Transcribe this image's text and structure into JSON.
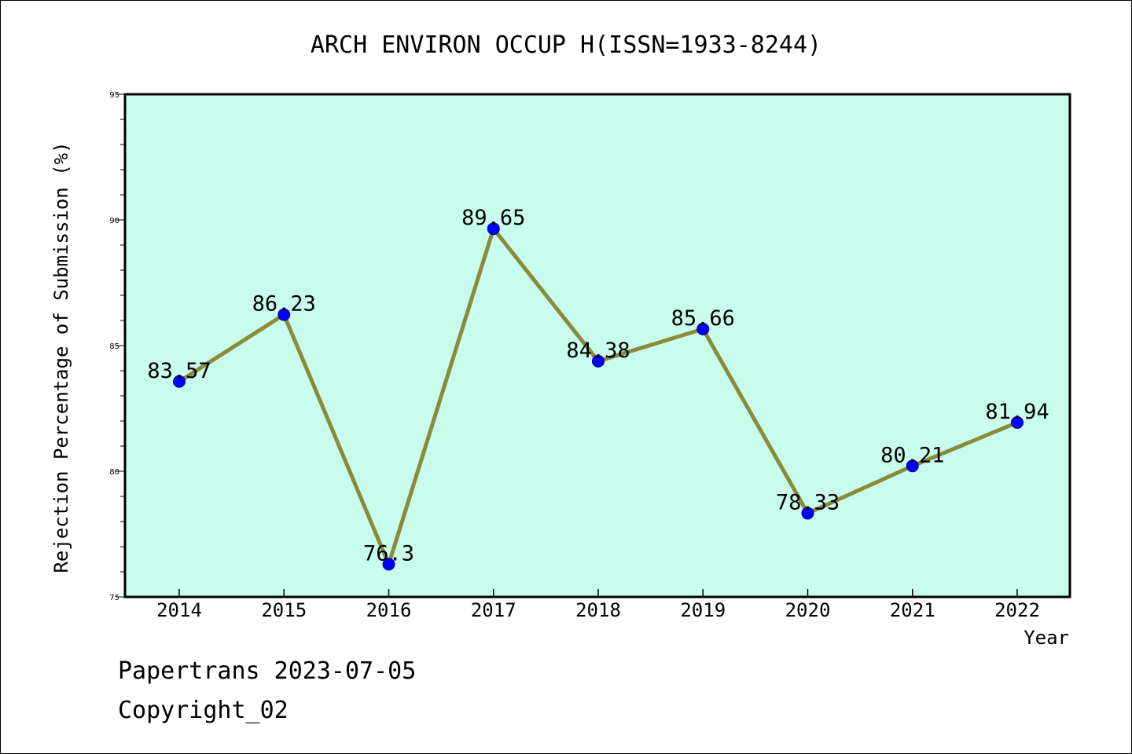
{
  "chart_data": {
    "type": "line",
    "title": "ARCH ENVIRON OCCUP H(ISSN=1933-8244)",
    "xlabel": "Year",
    "ylabel": "Rejection Percentage of Submission (%)",
    "categories": [
      "2014",
      "2015",
      "2016",
      "2017",
      "2018",
      "2019",
      "2020",
      "2021",
      "2022"
    ],
    "series": [
      {
        "values": [
          83.57,
          86.23,
          76.3,
          89.65,
          84.38,
          85.66,
          78.33,
          80.21,
          81.94
        ],
        "labels": [
          "83.57",
          "86.23",
          "76.3",
          "89.65",
          "84.38",
          "85.66",
          "78.33",
          "80.21",
          "81.94"
        ]
      }
    ],
    "ylim": [
      75,
      95
    ],
    "yticks": [
      "75",
      "80",
      "85",
      "90",
      "95"
    ],
    "grid": false,
    "colors": {
      "plot_background": "#c8fced",
      "line": "#8b8a3a",
      "marker": "#0000ff"
    }
  },
  "footer": {
    "line1": "Papertrans 2023-07-05",
    "line2": "Copyright_02"
  }
}
